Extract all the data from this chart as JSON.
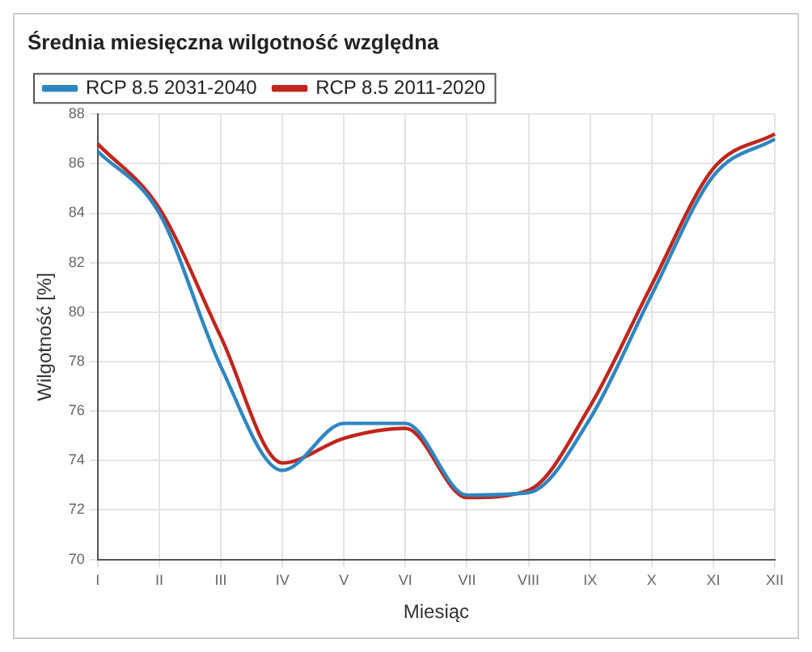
{
  "chart_data": {
    "type": "line",
    "title": "Średnia miesięczna wilgotność względna",
    "xlabel": "Miesiąc",
    "ylabel": "Wilgotność [%]",
    "categories": [
      "I",
      "II",
      "III",
      "IV",
      "V",
      "VI",
      "VII",
      "VIII",
      "IX",
      "X",
      "XI",
      "XII"
    ],
    "series": [
      {
        "name": "RCP 8.5 2031-2040",
        "color": "#2e86c1",
        "values": [
          86.5,
          84.0,
          77.8,
          73.6,
          75.5,
          75.5,
          72.6,
          72.7,
          75.7,
          80.7,
          85.5,
          87.0
        ]
      },
      {
        "name": "RCP 8.5 2011-2020",
        "color": "#c0261d",
        "values": [
          86.8,
          84.2,
          79.0,
          73.9,
          74.9,
          75.3,
          72.5,
          72.8,
          76.2,
          81.1,
          85.8,
          87.2
        ]
      }
    ],
    "ylim": [
      70,
      88
    ],
    "yticks": [
      70,
      72,
      74,
      76,
      78,
      80,
      82,
      84,
      86,
      88
    ],
    "grid": true,
    "legend": "top left",
    "marker": "none",
    "line_style": "solid"
  }
}
